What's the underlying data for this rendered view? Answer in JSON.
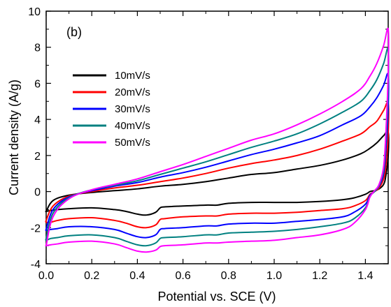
{
  "chart_data": {
    "type": "line",
    "title": "",
    "panel_label": "(b)",
    "xlabel": "Potential vs. SCE (V)",
    "ylabel": "Current density (A/g)",
    "xlim": [
      0.0,
      1.5
    ],
    "ylim": [
      -4,
      10
    ],
    "xticks": [
      "0.0",
      "0.2",
      "0.4",
      "0.6",
      "0.8",
      "1.0",
      "1.2",
      "1.4"
    ],
    "yticks": [
      "-4",
      "-2",
      "0",
      "2",
      "4",
      "6",
      "8",
      "10"
    ],
    "grid": false,
    "legend_position": "upper-left",
    "series": [
      {
        "name": "10mV/s",
        "color": "#000000",
        "x": [
          0.0,
          0.03,
          0.1,
          0.2,
          0.3,
          0.4,
          0.5,
          0.6,
          0.7,
          0.8,
          0.9,
          1.0,
          1.1,
          1.2,
          1.3,
          1.38,
          1.42,
          1.45,
          1.48,
          1.5,
          1.5,
          1.49,
          1.48,
          1.46,
          1.44,
          1.42,
          1.4,
          1.35,
          1.3,
          1.2,
          1.1,
          1.0,
          0.9,
          0.8,
          0.75,
          0.7,
          0.6,
          0.52,
          0.5,
          0.48,
          0.44,
          0.4,
          0.35,
          0.3,
          0.2,
          0.1,
          0.05,
          0.02,
          0.0
        ],
        "y": [
          -1.1,
          -0.5,
          -0.2,
          -0.05,
          0.05,
          0.15,
          0.3,
          0.4,
          0.55,
          0.75,
          0.95,
          1.05,
          1.25,
          1.45,
          1.75,
          2.1,
          2.4,
          2.7,
          3.1,
          3.3,
          2.0,
          0.9,
          0.4,
          0.15,
          0.05,
          0.0,
          -0.15,
          -0.35,
          -0.45,
          -0.55,
          -0.6,
          -0.6,
          -0.6,
          -0.65,
          -0.75,
          -0.75,
          -0.8,
          -0.85,
          -0.9,
          -1.15,
          -1.3,
          -1.25,
          -1.1,
          -1.0,
          -0.9,
          -0.95,
          -1.0,
          -1.05,
          -1.1
        ]
      },
      {
        "name": "20mV/s",
        "color": "#ff0000",
        "x": [
          0.0,
          0.03,
          0.1,
          0.2,
          0.3,
          0.4,
          0.5,
          0.6,
          0.7,
          0.8,
          0.9,
          1.0,
          1.1,
          1.2,
          1.3,
          1.38,
          1.42,
          1.45,
          1.48,
          1.5,
          1.5,
          1.49,
          1.48,
          1.46,
          1.44,
          1.42,
          1.4,
          1.35,
          1.3,
          1.2,
          1.1,
          1.0,
          0.9,
          0.8,
          0.75,
          0.7,
          0.6,
          0.52,
          0.5,
          0.48,
          0.44,
          0.4,
          0.35,
          0.3,
          0.2,
          0.1,
          0.05,
          0.02,
          0.0
        ],
        "y": [
          -1.6,
          -0.8,
          -0.25,
          -0.0,
          0.2,
          0.35,
          0.55,
          0.75,
          1.0,
          1.3,
          1.55,
          1.75,
          2.0,
          2.35,
          2.8,
          3.2,
          3.6,
          3.9,
          4.5,
          4.9,
          3.2,
          1.5,
          0.7,
          0.2,
          0.0,
          -0.15,
          -0.5,
          -0.8,
          -0.95,
          -1.05,
          -1.15,
          -1.2,
          -1.2,
          -1.25,
          -1.35,
          -1.35,
          -1.4,
          -1.5,
          -1.55,
          -1.85,
          -2.0,
          -1.95,
          -1.75,
          -1.6,
          -1.45,
          -1.5,
          -1.6,
          -1.7,
          -1.7
        ]
      },
      {
        "name": "30mV/s",
        "color": "#0000ff",
        "x": [
          0.0,
          0.03,
          0.1,
          0.2,
          0.3,
          0.4,
          0.5,
          0.6,
          0.7,
          0.8,
          0.9,
          1.0,
          1.1,
          1.2,
          1.3,
          1.38,
          1.42,
          1.45,
          1.48,
          1.5,
          1.5,
          1.49,
          1.48,
          1.46,
          1.44,
          1.42,
          1.4,
          1.35,
          1.3,
          1.2,
          1.1,
          1.0,
          0.9,
          0.8,
          0.75,
          0.7,
          0.6,
          0.52,
          0.5,
          0.48,
          0.44,
          0.4,
          0.35,
          0.3,
          0.2,
          0.1,
          0.05,
          0.02,
          0.0
        ],
        "y": [
          -2.1,
          -1.0,
          -0.3,
          0.05,
          0.3,
          0.5,
          0.8,
          1.05,
          1.35,
          1.7,
          2.05,
          2.35,
          2.7,
          3.1,
          3.7,
          4.2,
          4.7,
          5.2,
          5.9,
          6.5,
          4.6,
          2.3,
          1.0,
          0.3,
          0.0,
          -0.2,
          -0.7,
          -1.15,
          -1.4,
          -1.55,
          -1.65,
          -1.75,
          -1.75,
          -1.8,
          -1.9,
          -1.9,
          -2.0,
          -2.05,
          -2.1,
          -2.4,
          -2.55,
          -2.5,
          -2.3,
          -2.1,
          -1.95,
          -1.95,
          -2.05,
          -2.1,
          -2.15
        ]
      },
      {
        "name": "40mV/s",
        "color": "#008080",
        "x": [
          0.0,
          0.03,
          0.1,
          0.2,
          0.3,
          0.4,
          0.5,
          0.6,
          0.7,
          0.8,
          0.9,
          1.0,
          1.1,
          1.2,
          1.3,
          1.38,
          1.42,
          1.45,
          1.48,
          1.5,
          1.5,
          1.49,
          1.48,
          1.46,
          1.44,
          1.42,
          1.4,
          1.35,
          1.3,
          1.2,
          1.1,
          1.0,
          0.9,
          0.8,
          0.75,
          0.7,
          0.6,
          0.52,
          0.5,
          0.48,
          0.44,
          0.4,
          0.35,
          0.3,
          0.2,
          0.1,
          0.05,
          0.02,
          0.0
        ],
        "y": [
          -2.6,
          -1.2,
          -0.35,
          0.1,
          0.35,
          0.6,
          0.95,
          1.3,
          1.65,
          2.05,
          2.45,
          2.8,
          3.2,
          3.75,
          4.4,
          5.0,
          5.6,
          6.2,
          7.1,
          7.9,
          5.7,
          2.8,
          1.2,
          0.35,
          0.0,
          -0.25,
          -0.9,
          -1.5,
          -1.75,
          -1.95,
          -2.1,
          -2.2,
          -2.25,
          -2.3,
          -2.4,
          -2.4,
          -2.5,
          -2.55,
          -2.6,
          -2.85,
          -3.0,
          -2.95,
          -2.75,
          -2.55,
          -2.4,
          -2.45,
          -2.55,
          -2.6,
          -2.7
        ]
      },
      {
        "name": "50mV/s",
        "color": "#ff00ff",
        "x": [
          0.0,
          0.03,
          0.1,
          0.2,
          0.3,
          0.4,
          0.5,
          0.6,
          0.7,
          0.8,
          0.9,
          1.0,
          1.1,
          1.2,
          1.3,
          1.38,
          1.42,
          1.45,
          1.48,
          1.5,
          1.5,
          1.49,
          1.48,
          1.46,
          1.44,
          1.42,
          1.4,
          1.35,
          1.3,
          1.2,
          1.1,
          1.0,
          0.9,
          0.8,
          0.75,
          0.7,
          0.6,
          0.52,
          0.5,
          0.48,
          0.44,
          0.4,
          0.35,
          0.3,
          0.2,
          0.1,
          0.05,
          0.02,
          0.0
        ],
        "y": [
          -3.0,
          -1.4,
          -0.4,
          0.1,
          0.4,
          0.7,
          1.1,
          1.5,
          1.95,
          2.4,
          2.85,
          3.2,
          3.7,
          4.3,
          5.0,
          5.7,
          6.4,
          7.1,
          8.1,
          9.0,
          6.6,
          3.3,
          1.4,
          0.4,
          0.05,
          -0.3,
          -1.0,
          -1.75,
          -2.1,
          -2.4,
          -2.55,
          -2.7,
          -2.75,
          -2.8,
          -2.85,
          -2.85,
          -2.95,
          -3.0,
          -3.05,
          -3.25,
          -3.35,
          -3.3,
          -3.1,
          -2.9,
          -2.75,
          -2.8,
          -2.9,
          -2.95,
          -3.0
        ]
      }
    ]
  }
}
